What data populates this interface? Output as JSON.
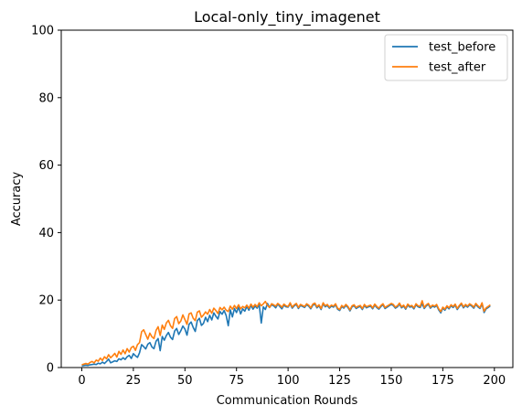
{
  "chart_data": {
    "type": "line",
    "title": "Local-only_tiny_imagenet",
    "xlabel": "Communication Rounds",
    "ylabel": "Accuracy",
    "xlim": [
      -9.95,
      208.95
    ],
    "ylim": [
      0,
      100
    ],
    "xticks": [
      0,
      25,
      50,
      75,
      100,
      125,
      150,
      175,
      200
    ],
    "yticks": [
      0,
      20,
      40,
      60,
      80,
      100
    ],
    "grid": false,
    "legend_position": "top-right",
    "series": [
      {
        "name": "test_before",
        "color": "#1f77b4",
        "values": [
          0.5,
          0.6,
          0.7,
          0.6,
          0.8,
          0.9,
          1.0,
          0.9,
          1.3,
          1.1,
          1.6,
          1.2,
          1.8,
          2.5,
          1.4,
          1.7,
          2.0,
          1.8,
          2.6,
          2.3,
          2.9,
          2.4,
          3.2,
          3.6,
          2.7,
          4.1,
          3.5,
          3.0,
          4.4,
          6.8,
          6.2,
          5.5,
          6.9,
          7.4,
          6.1,
          5.6,
          7.8,
          8.6,
          5.0,
          9.2,
          8.1,
          9.5,
          10.4,
          9.0,
          8.3,
          10.8,
          11.6,
          9.8,
          10.9,
          12.3,
          11.4,
          9.6,
          12.8,
          13.5,
          11.9,
          10.7,
          13.9,
          14.6,
          12.5,
          13.1,
          14.9,
          13.6,
          15.5,
          14.1,
          16.2,
          15.2,
          14.4,
          16.6,
          15.8,
          16.9,
          15.4,
          12.4,
          17.1,
          15.0,
          17.5,
          16.3,
          17.9,
          15.9,
          17.4,
          16.7,
          18.1,
          17.0,
          18.4,
          17.3,
          18.2,
          17.6,
          18.7,
          13.2,
          18.0,
          17.2,
          19.0,
          17.8,
          18.6,
          18.3,
          17.7,
          18.8,
          18.1,
          17.4,
          18.5,
          18.0,
          17.9,
          18.9,
          17.6,
          18.3,
          18.7,
          17.5,
          18.4,
          18.1,
          17.8,
          18.6,
          18.2,
          17.4,
          18.5,
          18.8,
          17.7,
          18.3,
          17.2,
          18.9,
          18.0,
          18.4,
          17.6,
          18.2,
          17.9,
          18.6,
          17.3,
          16.9,
          18.1,
          17.6,
          18.4,
          17.8,
          16.8,
          18.0,
          18.3,
          17.5,
          17.9,
          18.1,
          17.2,
          18.4,
          17.7,
          18.0,
          18.2,
          17.4,
          18.5,
          17.8,
          17.3,
          18.1,
          18.6,
          17.5,
          17.9,
          18.3,
          18.7,
          18.4,
          17.6,
          18.0,
          18.8,
          17.7,
          18.2,
          17.3,
          18.5,
          17.9,
          18.1,
          17.4,
          18.6,
          18.0,
          17.8,
          18.9,
          17.5,
          18.3,
          18.7,
          17.6,
          18.2,
          17.9,
          18.4,
          17.1,
          16.2,
          17.6,
          17.0,
          18.0,
          17.4,
          18.3,
          17.8,
          18.5,
          17.2,
          18.1,
          18.8,
          17.7,
          18.4,
          17.9,
          18.6,
          18.2,
          17.6,
          18.7,
          18.0,
          17.5,
          18.9,
          16.3,
          17.4,
          17.8,
          18.3
        ]
      },
      {
        "name": "test_after",
        "color": "#ff7f0e",
        "values": [
          0.8,
          1.0,
          1.2,
          1.0,
          1.5,
          1.8,
          1.4,
          2.2,
          1.9,
          2.8,
          2.1,
          3.2,
          2.6,
          3.8,
          2.9,
          3.5,
          4.2,
          3.1,
          4.8,
          3.9,
          5.2,
          4.1,
          5.6,
          4.6,
          5.9,
          6.3,
          5.1,
          6.8,
          7.4,
          10.6,
          11.2,
          9.8,
          8.4,
          10.2,
          9.1,
          8.6,
          11.0,
          12.1,
          9.5,
          12.6,
          11.3,
          13.2,
          14.0,
          12.4,
          11.6,
          14.5,
          15.1,
          13.0,
          13.8,
          15.6,
          14.2,
          12.8,
          15.9,
          16.2,
          14.6,
          13.9,
          16.4,
          16.8,
          14.9,
          15.6,
          16.5,
          15.8,
          17.2,
          16.1,
          17.6,
          16.9,
          16.0,
          17.8,
          17.1,
          17.9,
          17.0,
          16.6,
          18.2,
          17.3,
          18.4,
          17.5,
          18.6,
          17.4,
          18.1,
          17.7,
          18.5,
          17.6,
          18.8,
          17.9,
          18.7,
          18.0,
          19.2,
          18.3,
          18.9,
          19.6,
          18.4,
          17.8,
          18.9,
          18.6,
          18.2,
          19.0,
          18.5,
          17.9,
          18.8,
          18.3,
          18.1,
          19.2,
          17.9,
          18.6,
          19.0,
          17.8,
          18.7,
          18.4,
          18.1,
          18.9,
          18.5,
          17.7,
          18.8,
          19.1,
          18.0,
          18.6,
          17.5,
          19.2,
          18.3,
          18.7,
          17.9,
          18.5,
          18.2,
          18.9,
          17.6,
          17.2,
          18.4,
          17.9,
          18.7,
          18.1,
          17.1,
          18.3,
          18.6,
          17.8,
          18.2,
          18.4,
          17.5,
          18.7,
          18.0,
          18.3,
          18.5,
          17.7,
          18.8,
          18.1,
          17.6,
          18.4,
          18.9,
          17.8,
          18.2,
          18.6,
          19.0,
          18.7,
          17.9,
          18.3,
          19.1,
          18.0,
          18.5,
          17.6,
          18.8,
          18.2,
          18.4,
          17.7,
          18.9,
          18.3,
          18.1,
          19.8,
          17.8,
          18.6,
          19.0,
          17.9,
          18.5,
          18.2,
          18.7,
          17.4,
          16.6,
          17.9,
          17.3,
          18.3,
          17.7,
          18.6,
          18.1,
          18.8,
          17.5,
          18.4,
          19.1,
          18.0,
          18.7,
          18.2,
          18.9,
          18.5,
          17.9,
          19.0,
          18.3,
          17.8,
          19.2,
          16.7,
          17.7,
          18.1,
          18.6
        ]
      }
    ]
  }
}
